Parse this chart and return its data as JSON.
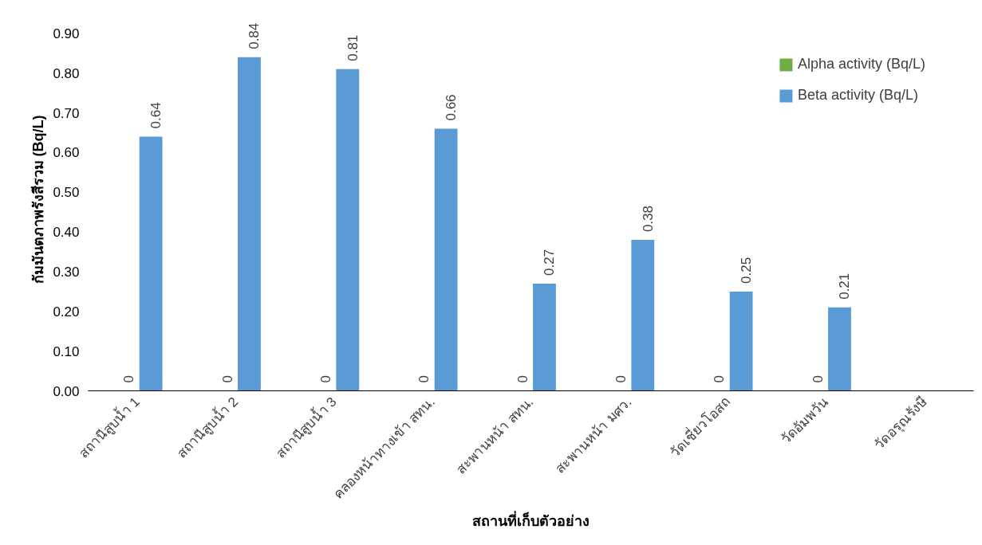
{
  "chart_data": {
    "type": "bar",
    "xlabel": "สถานที่เก็บตัวอย่าง",
    "ylabel": "กัมมันตภาพรังสีรวม (Bq/L)",
    "categories": [
      "สถานีสูบน้ำ 1",
      "สถานีสูบน้ำ 2",
      "สถานีสูบน้ำ 3",
      "คลองหน้าทางเข้า สทน.",
      "สะพานหน้า สทน.",
      "สะพานหน้า มศว.",
      "วัดเชี่ยวโอสถ",
      "วัดอัมพวัน",
      "วัดอรุณรังษี"
    ],
    "series": [
      {
        "name": "Alpha activity (Bq/L)",
        "color": "#70ad47",
        "values": [
          0,
          0,
          0,
          0,
          0,
          0,
          0,
          0,
          null
        ]
      },
      {
        "name": "Beta activity (Bq/L)",
        "color": "#5b9bd5",
        "values": [
          0.64,
          0.84,
          0.81,
          0.66,
          0.27,
          0.38,
          0.25,
          0.21,
          null
        ]
      }
    ],
    "ylim": [
      0,
      0.9
    ],
    "yticks": [
      {
        "value": 0,
        "label": "0.00"
      },
      {
        "value": 0.1,
        "label": "0.10"
      },
      {
        "value": 0.2,
        "label": "0.20"
      },
      {
        "value": 0.3,
        "label": "0.30"
      },
      {
        "value": 0.4,
        "label": "0.40"
      },
      {
        "value": 0.5,
        "label": "0.50"
      },
      {
        "value": 0.6,
        "label": "0.60"
      },
      {
        "value": 0.7,
        "label": "0.70"
      },
      {
        "value": 0.8,
        "label": "0.80"
      },
      {
        "value": 0.9,
        "label": "0.90"
      }
    ],
    "data_labels": true,
    "grid": false,
    "legend": "top right"
  }
}
